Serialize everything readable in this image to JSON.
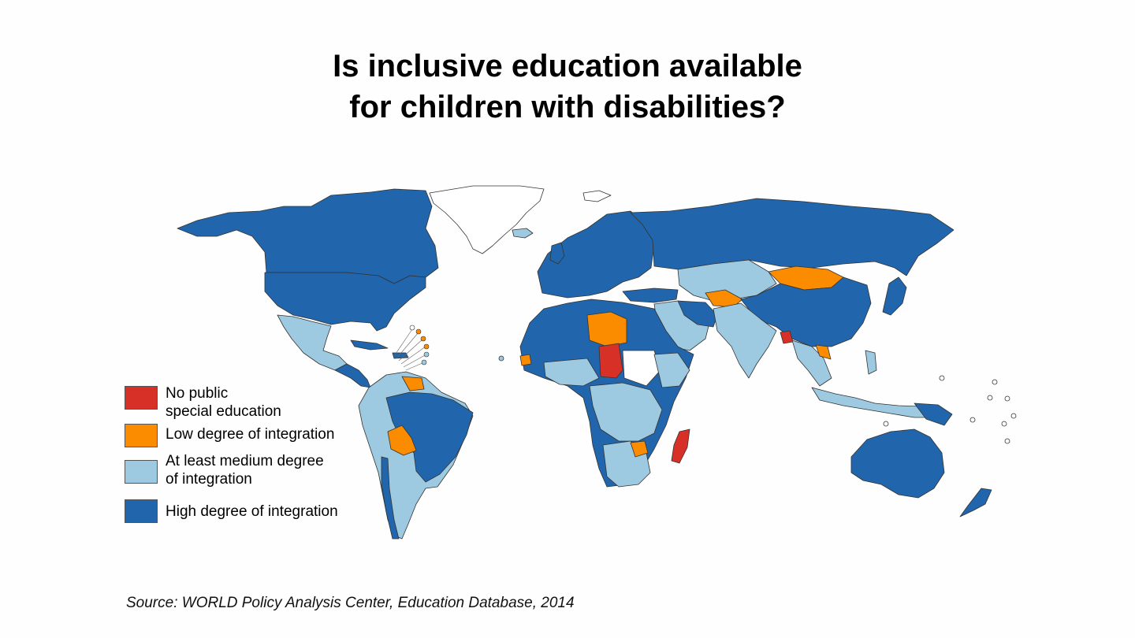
{
  "title": {
    "line1": "Is inclusive education available",
    "line2": "for children with disabilities?"
  },
  "legend": [
    {
      "label": "No public\nspecial education",
      "color": "#d73027"
    },
    {
      "label": "Low degree of integration",
      "color": "#fb8c00"
    },
    {
      "label": "At least medium degree\nof integration",
      "color": "#9ecae1"
    },
    {
      "label": "High degree of integration",
      "color": "#2166ac"
    }
  ],
  "source": "Source: WORLD Policy Analysis Center, Education Database, 2014",
  "colors": {
    "none": "#d73027",
    "low": "#fb8c00",
    "medium": "#9ecae1",
    "high": "#2166ac",
    "nodata": "#ffffff",
    "border": "#333333"
  }
}
